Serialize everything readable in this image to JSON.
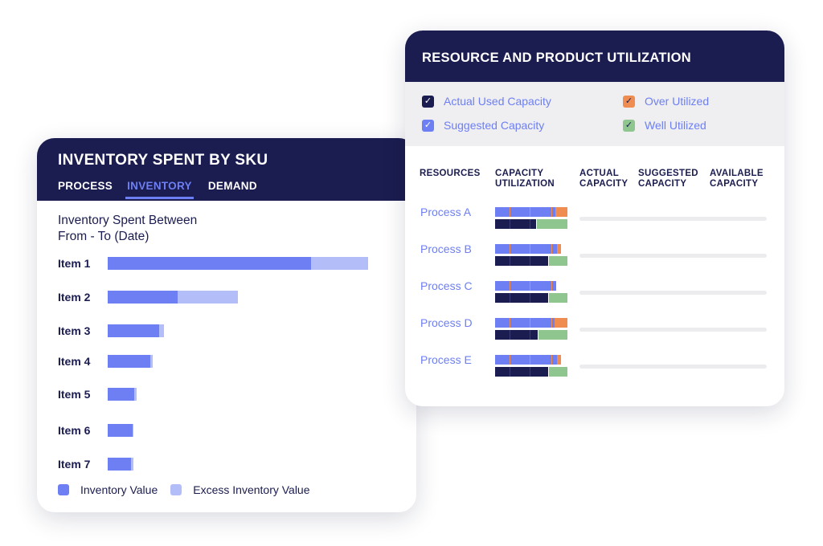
{
  "inventory_card": {
    "title": "INVENTORY SPENT BY SKU",
    "tabs": [
      {
        "label": "PROCESS",
        "active": false
      },
      {
        "label": "INVENTORY",
        "active": true
      },
      {
        "label": "DEMAND",
        "active": false
      }
    ],
    "subtitle_line1": "Inventory Spent Between",
    "subtitle_line2": "From - To (Date)",
    "chart_data": {
      "type": "bar",
      "orientation": "horizontal",
      "stacked": true,
      "categories": [
        "Item 1",
        "Item 2",
        "Item 3",
        "Item 4",
        "Item 5",
        "Item 6",
        "Item 7"
      ],
      "series": [
        {
          "name": "Inventory Value",
          "color": "#6d7ff3",
          "values": [
            253,
            87,
            64,
            53,
            33,
            31,
            29
          ]
        },
        {
          "name": "Excess Inventory Value",
          "color": "#b3bdf8",
          "values": [
            71,
            75,
            6,
            3,
            3,
            1,
            3
          ]
        }
      ],
      "xlim": [
        0,
        324
      ]
    },
    "legend": {
      "inventory_value": "Inventory Value",
      "excess_inventory_value": "Excess Inventory Value"
    }
  },
  "utilization_card": {
    "title": "RESOURCE  AND PRODUCT UTILIZATION",
    "legend": {
      "actual_used": "Actual Used Capacity",
      "suggested": "Suggested Capacity",
      "over_utilized": "Over Utilized",
      "well_utilized": "Well Utilized"
    },
    "columns": {
      "resources": "RESOURCES",
      "capacity_line1": "CAPACITY",
      "capacity_line2": "UTILIZATION",
      "actual_line1": "ACTUAL",
      "actual_line2": "CAPACITY",
      "suggested_line1": "SUGGESTED",
      "suggested_line2": "CAPACITY",
      "available_line1": "AVAILABLE",
      "available_line2": "CAPACITY"
    },
    "colors": {
      "navy": "#1b1c4f",
      "blue": "#6d7ff3",
      "orange": "#ef8c52",
      "green": "#8fc58e"
    },
    "processes": [
      {
        "name": "Process A",
        "top_bar": {
          "used_pct": 83,
          "over_pct": 17
        },
        "bottom_bar": {
          "actual_pct": 58,
          "well_pct": 42
        }
      },
      {
        "name": "Process B",
        "top_bar": {
          "used_pct": 86,
          "over_pct": 5
        },
        "bottom_bar": {
          "actual_pct": 74,
          "well_pct": 26
        }
      },
      {
        "name": "Process C",
        "top_bar": {
          "used_pct": 84,
          "over_pct": 0
        },
        "bottom_bar": {
          "actual_pct": 74,
          "well_pct": 26
        }
      },
      {
        "name": "Process D",
        "top_bar": {
          "used_pct": 82,
          "over_pct": 18
        },
        "bottom_bar": {
          "actual_pct": 60,
          "well_pct": 40
        }
      },
      {
        "name": "Process E",
        "top_bar": {
          "used_pct": 86,
          "over_pct": 5
        },
        "bottom_bar": {
          "actual_pct": 74,
          "well_pct": 26
        }
      }
    ]
  }
}
